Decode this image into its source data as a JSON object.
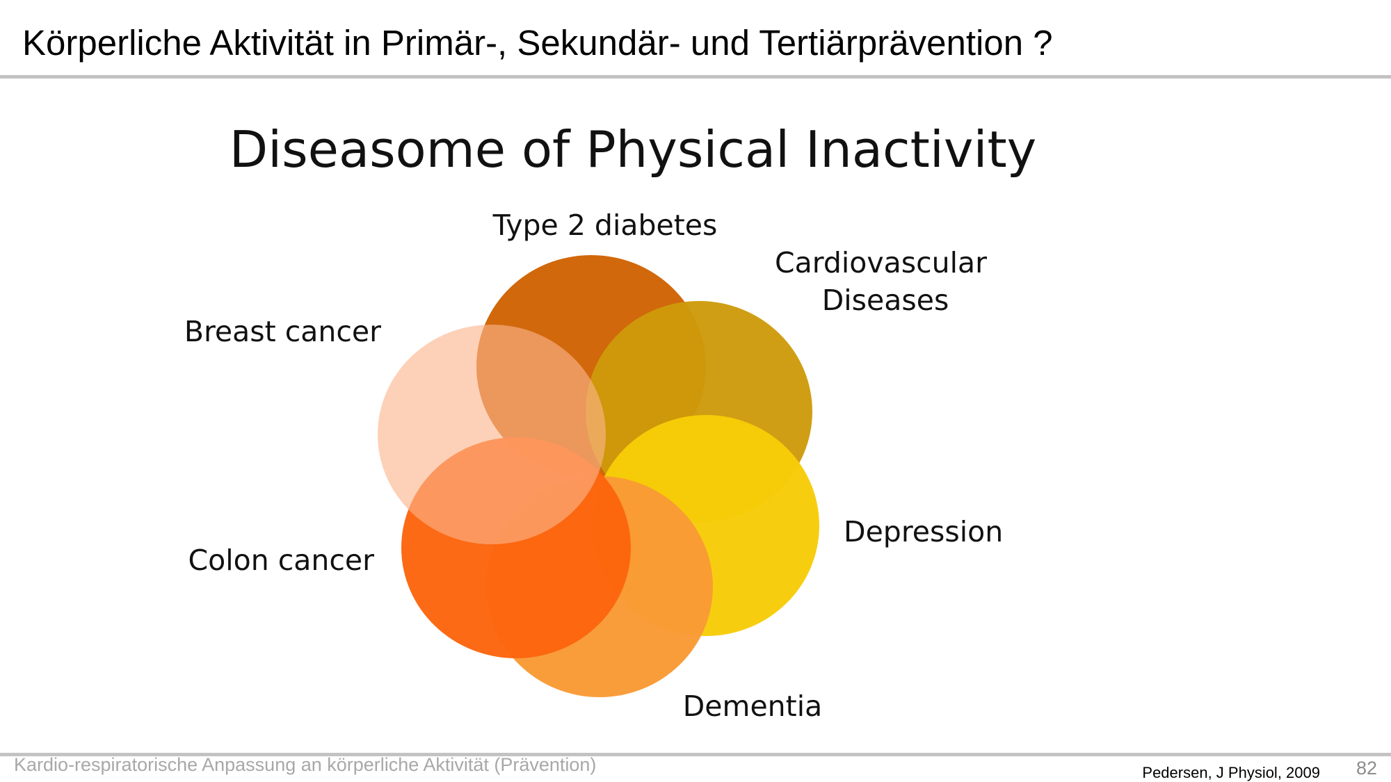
{
  "slide": {
    "title": "Körperliche Aktivität in Primär-, Sekundär- und Tertiärprävention ?",
    "footer_text": "Kardio-respiratorische Anpassung an körperliche Aktivität (Prävention)",
    "source": "Pedersen, J Physiol, 2009",
    "page_number": "82"
  },
  "diagram": {
    "title": "Diseasome of Physical Inactivity",
    "circles": [
      {
        "id": "type-2-diabetes",
        "label": "Type 2 diabetes",
        "color": "#D06507"
      },
      {
        "id": "cardiovascular-diseases",
        "label_lines": [
          "Cardiovascular",
          "Diseases"
        ],
        "color": "#CE9A0A"
      },
      {
        "id": "depression",
        "label": "Depression",
        "color": "#F7CC07"
      },
      {
        "id": "dementia",
        "label": "Dementia",
        "color": "#F99A35"
      },
      {
        "id": "colon-cancer",
        "label": "Colon cancer",
        "color": "#FC650D"
      },
      {
        "id": "breast-cancer",
        "label": "Breast cancer",
        "color": "#FCB48C"
      }
    ]
  }
}
